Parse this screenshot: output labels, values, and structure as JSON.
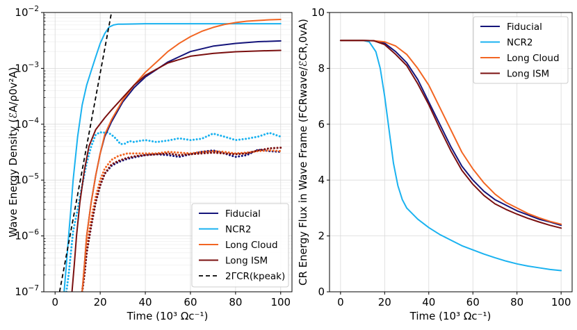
{
  "chart_data": [
    {
      "type": "line",
      "yscale": "log",
      "xlabel": "Time (10³ Ωc⁻¹)",
      "ylabel": "Wave Energy Density (ℰA/ρ0v²A)",
      "xlim": [
        -5,
        105
      ],
      "ylim": [
        1e-07,
        0.01
      ],
      "x_ticks": [
        0,
        20,
        40,
        60,
        80,
        100
      ],
      "y_ticks": [
        {
          "value": 1e-07,
          "base": "10",
          "exp": "−7"
        },
        {
          "value": 1e-06,
          "base": "10",
          "exp": "−6"
        },
        {
          "value": 1e-05,
          "base": "10",
          "exp": "−5"
        },
        {
          "value": 0.0001,
          "base": "10",
          "exp": "−4"
        },
        {
          "value": 0.001,
          "base": "10",
          "exp": "−3"
        },
        {
          "value": 0.01,
          "base": "10",
          "exp": "−2"
        }
      ],
      "grid": true,
      "legend_position": "lower-right",
      "legend": [
        "Fiducial",
        "NCR2",
        "Long Cloud",
        "Long ISM",
        "2ΓCR(kpeak)"
      ],
      "series": [
        {
          "name": "Fiducial",
          "color": "#14147a",
          "dash": "solid",
          "x": [
            12,
            13,
            14,
            16,
            18,
            20,
            22,
            25,
            30,
            35,
            40,
            50,
            60,
            70,
            80,
            90,
            100
          ],
          "y": [
            1e-07,
            3e-07,
            1e-06,
            4e-06,
            1.2e-05,
            3e-05,
            6e-05,
            0.00011,
            0.00025,
            0.00045,
            0.0007,
            0.0013,
            0.002,
            0.0025,
            0.0028,
            0.003,
            0.0031
          ]
        },
        {
          "name": "NCR2",
          "color": "#1ab2f0",
          "dash": "solid",
          "x": [
            4,
            5,
            6,
            7,
            8,
            10,
            12,
            14,
            16,
            18,
            20,
            22,
            24,
            26,
            28,
            30,
            40,
            60,
            80,
            100
          ],
          "y": [
            1e-07,
            3e-07,
            1e-06,
            3e-06,
            1e-05,
            6e-05,
            0.00022,
            0.0005,
            0.0009,
            0.0016,
            0.0028,
            0.0042,
            0.0055,
            0.006,
            0.0062,
            0.0062,
            0.0063,
            0.0063,
            0.0063,
            0.0063
          ]
        },
        {
          "name": "Long Cloud",
          "color": "#f26522",
          "dash": "solid",
          "x": [
            12,
            13,
            14,
            16,
            18,
            20,
            22,
            25,
            30,
            35,
            40,
            45,
            50,
            55,
            60,
            65,
            70,
            75,
            80,
            85,
            90,
            95,
            100
          ],
          "y": [
            1e-07,
            3e-07,
            1e-06,
            4e-06,
            1.2e-05,
            3e-05,
            6.5e-05,
            0.00012,
            0.00027,
            0.0005,
            0.00085,
            0.0013,
            0.002,
            0.0028,
            0.0037,
            0.0046,
            0.0054,
            0.0061,
            0.0066,
            0.007,
            0.0072,
            0.0074,
            0.0075
          ]
        },
        {
          "name": "Long ISM",
          "color": "#7a0f0f",
          "dash": "solid",
          "x": [
            7.5,
            8.5,
            9.5,
            11,
            13,
            15,
            18,
            22,
            25,
            30,
            35,
            40,
            50,
            60,
            70,
            80,
            90,
            100
          ],
          "y": [
            1e-07,
            3e-07,
            1e-06,
            4e-06,
            1.5e-05,
            4e-05,
            8e-05,
            0.00013,
            0.00018,
            0.0003,
            0.0005,
            0.00075,
            0.00125,
            0.00165,
            0.00185,
            0.00198,
            0.00205,
            0.0021
          ]
        },
        {
          "name": "2ΓCR(kpeak)",
          "color": "#000000",
          "dash": "dashed",
          "x": [
            2,
            25
          ],
          "y": [
            1e-07,
            0.01
          ]
        },
        {
          "name": "NCR2 (dotted)",
          "color": "#1ab2f0",
          "dash": "dotted",
          "x": [
            5,
            6,
            7,
            8,
            10,
            12,
            14,
            16,
            18,
            20,
            21,
            23,
            25,
            27,
            29,
            31,
            33,
            35,
            37,
            40,
            45,
            50,
            55,
            60,
            65,
            70,
            75,
            80,
            85,
            90,
            95,
            100
          ],
          "y": [
            1e-07,
            2e-07,
            5e-07,
            1.2e-06,
            3e-06,
            8e-06,
            2e-05,
            4e-05,
            6.5e-05,
            7.2e-05,
            7e-05,
            7.2e-05,
            6.5e-05,
            5.5e-05,
            4.4e-05,
            4.5e-05,
            5e-05,
            4.8e-05,
            5e-05,
            5.2e-05,
            4.8e-05,
            5.1e-05,
            5.6e-05,
            5.2e-05,
            5.5e-05,
            6.8e-05,
            6e-05,
            5.2e-05,
            5.5e-05,
            6e-05,
            7e-05,
            6e-05
          ]
        },
        {
          "name": "Fiducial (dotted)",
          "color": "#14147a",
          "dash": "dotted",
          "x": [
            12,
            13,
            14,
            16,
            18,
            20,
            22,
            25,
            28,
            32,
            36,
            40,
            45,
            50,
            55,
            60,
            65,
            70,
            75,
            80,
            85,
            90,
            95,
            100
          ],
          "y": [
            1e-07,
            2e-07,
            5e-07,
            1.5e-06,
            4e-06,
            8e-06,
            1.3e-05,
            1.8e-05,
            2.1e-05,
            2.4e-05,
            2.6e-05,
            2.8e-05,
            2.9e-05,
            2.8e-05,
            2.6e-05,
            2.9e-05,
            3.2e-05,
            3.4e-05,
            3e-05,
            2.6e-05,
            2.8e-05,
            3.5e-05,
            3.3e-05,
            3.2e-05
          ]
        },
        {
          "name": "Long Cloud (dotted)",
          "color": "#f26522",
          "dash": "dotted",
          "x": [
            12,
            13,
            14,
            16,
            18,
            20,
            22,
            25,
            28,
            32,
            36,
            40,
            45,
            50,
            55,
            60,
            65,
            70,
            75,
            80,
            85,
            90,
            95,
            100
          ],
          "y": [
            1e-07,
            2e-07,
            6e-07,
            2e-06,
            5e-06,
            1e-05,
            1.6e-05,
            2.3e-05,
            2.7e-05,
            3e-05,
            3e-05,
            3e-05,
            3e-05,
            3.2e-05,
            3.1e-05,
            3e-05,
            3.2e-05,
            3.3e-05,
            3.2e-05,
            3e-05,
            3.1e-05,
            3.3e-05,
            3.4e-05,
            3.3e-05
          ]
        },
        {
          "name": "Long ISM (dotted)",
          "color": "#7a0f0f",
          "dash": "dotted",
          "x": [
            12,
            13,
            14,
            16,
            18,
            20,
            22,
            25,
            28,
            32,
            36,
            40,
            45,
            50,
            55,
            60,
            65,
            70,
            75,
            80,
            85,
            90,
            95,
            100
          ],
          "y": [
            1e-07,
            2e-07,
            5e-07,
            1.5e-06,
            4e-06,
            8e-06,
            1.3e-05,
            1.9e-05,
            2.2e-05,
            2.5e-05,
            2.7e-05,
            2.8e-05,
            2.9e-05,
            3e-05,
            2.8e-05,
            2.9e-05,
            3e-05,
            3.1e-05,
            3e-05,
            2.9e-05,
            3e-05,
            3.4e-05,
            3.7e-05,
            3.8e-05
          ]
        }
      ]
    },
    {
      "type": "line",
      "yscale": "linear",
      "xlabel": "Time (10³ Ωc⁻¹)",
      "ylabel": "CR Energy Flux in Wave Frame (FCRwave/ℰCR,0vA)",
      "xlim": [
        -5,
        105
      ],
      "ylim": [
        0,
        10
      ],
      "x_ticks": [
        0,
        20,
        40,
        60,
        80,
        100
      ],
      "y_ticks": [
        0,
        2,
        4,
        6,
        8,
        10
      ],
      "grid": true,
      "legend_position": "top-right",
      "legend": [
        "Fiducial",
        "NCR2",
        "Long Cloud",
        "Long ISM"
      ],
      "series": [
        {
          "name": "Fiducial",
          "color": "#14147a",
          "x": [
            0,
            5,
            10,
            15,
            20,
            25,
            30,
            35,
            40,
            45,
            50,
            55,
            60,
            65,
            70,
            75,
            80,
            85,
            90,
            95,
            100
          ],
          "y": [
            9.0,
            9.0,
            9.0,
            8.99,
            8.9,
            8.6,
            8.2,
            7.6,
            6.8,
            6.0,
            5.2,
            4.5,
            4.0,
            3.6,
            3.3,
            3.1,
            2.9,
            2.75,
            2.6,
            2.5,
            2.38
          ]
        },
        {
          "name": "NCR2",
          "color": "#1ab2f0",
          "x": [
            0,
            5,
            10,
            13,
            16,
            18,
            20,
            22,
            24,
            26,
            28,
            30,
            35,
            40,
            45,
            50,
            55,
            60,
            65,
            70,
            75,
            80,
            85,
            90,
            95,
            100
          ],
          "y": [
            9.0,
            9.0,
            9.0,
            8.95,
            8.6,
            8.0,
            7.0,
            5.8,
            4.6,
            3.8,
            3.3,
            3.0,
            2.6,
            2.3,
            2.05,
            1.85,
            1.65,
            1.5,
            1.35,
            1.22,
            1.1,
            1.0,
            0.92,
            0.86,
            0.8,
            0.76
          ]
        },
        {
          "name": "Long Cloud",
          "color": "#f26522",
          "x": [
            0,
            5,
            10,
            15,
            20,
            25,
            30,
            35,
            40,
            45,
            50,
            55,
            60,
            65,
            70,
            75,
            80,
            85,
            90,
            95,
            100
          ],
          "y": [
            9.0,
            9.0,
            9.0,
            8.99,
            8.95,
            8.8,
            8.5,
            8.0,
            7.4,
            6.6,
            5.8,
            5.0,
            4.4,
            3.9,
            3.5,
            3.2,
            3.0,
            2.8,
            2.65,
            2.52,
            2.42
          ]
        },
        {
          "name": "Long ISM",
          "color": "#7a0f0f",
          "x": [
            0,
            5,
            10,
            15,
            20,
            25,
            30,
            35,
            40,
            45,
            50,
            55,
            60,
            65,
            70,
            75,
            80,
            85,
            90,
            95,
            100
          ],
          "y": [
            9.0,
            9.0,
            9.0,
            8.99,
            8.85,
            8.5,
            8.1,
            7.45,
            6.7,
            5.85,
            5.05,
            4.35,
            3.85,
            3.45,
            3.15,
            2.95,
            2.78,
            2.63,
            2.5,
            2.38,
            2.28
          ]
        }
      ]
    }
  ]
}
